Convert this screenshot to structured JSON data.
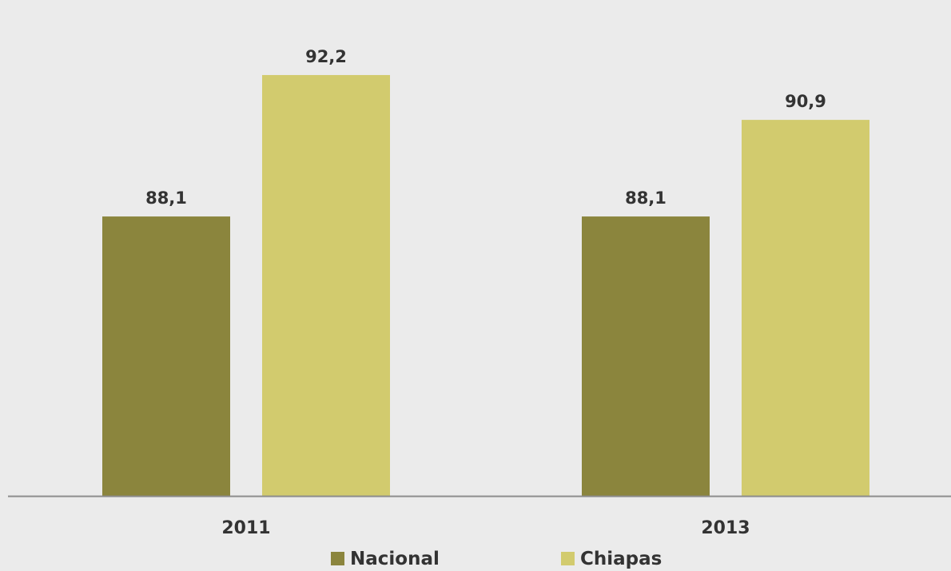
{
  "chart_data": {
    "type": "bar",
    "categories": [
      "2011",
      "2013"
    ],
    "series": [
      {
        "name": "Nacional",
        "values": [
          88.1,
          88.1
        ],
        "labels": [
          "88,1",
          "88,1"
        ],
        "color": "#8b853d"
      },
      {
        "name": "Chiapas",
        "values": [
          92.2,
          90.9
        ],
        "labels": [
          "92,2",
          "90,9"
        ],
        "color": "#d2cb6e"
      }
    ],
    "title": "",
    "xlabel": "",
    "ylabel": "",
    "ylim": [
      80,
      93.3
    ],
    "grid": false,
    "legend_position": "bottom",
    "colors": {
      "background": "#ebebeb",
      "axis": "#8c8c8c",
      "text": "#333333"
    }
  }
}
